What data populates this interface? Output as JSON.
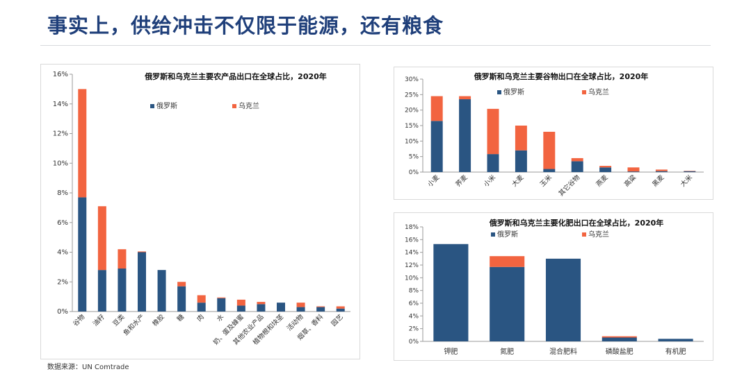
{
  "header": {
    "title": "事实上，供给冲击不仅限于能源，还有粮食"
  },
  "footer": {
    "source": "数据来源：UN Comtrade"
  },
  "colors": {
    "russia": "#2a5582",
    "ukraine": "#f26440",
    "title": "#1f3f7a"
  },
  "chart_data": [
    {
      "type": "bar",
      "stacked": true,
      "title": "俄罗斯和乌克兰主要农产品出口在全球占比，2020年",
      "categories": [
        "谷物",
        "油籽",
        "豆类",
        "鱼和水产",
        "橡胶",
        "糖",
        "肉",
        "水",
        "奶、蛋及蜂蜜",
        "其他农业产品",
        "植物根和块茎",
        "活动物",
        "烟草、香料",
        "园艺"
      ],
      "series": [
        {
          "name": "俄罗斯",
          "values": [
            7.7,
            2.8,
            2.9,
            4.0,
            2.8,
            1.7,
            0.6,
            0.9,
            0.4,
            0.5,
            0.6,
            0.3,
            0.3,
            0.2
          ]
        },
        {
          "name": "乌克兰",
          "values": [
            7.3,
            4.3,
            1.3,
            0.05,
            0.0,
            0.3,
            0.5,
            0.05,
            0.4,
            0.15,
            0.0,
            0.3,
            0.05,
            0.15
          ]
        }
      ],
      "ylim": [
        0,
        16
      ],
      "yticks": [
        "0%",
        "2%",
        "4%",
        "6%",
        "8%",
        "10%",
        "12%",
        "14%",
        "16%"
      ],
      "legend": "top-left"
    },
    {
      "type": "bar",
      "stacked": true,
      "title": "俄罗斯和乌克兰主要谷物出口在全球占比，2020年",
      "categories": [
        "小麦",
        "荞麦",
        "小米",
        "大麦",
        "玉米",
        "其它谷物",
        "燕麦",
        "高粱",
        "黑麦",
        "大米"
      ],
      "series": [
        {
          "name": "俄罗斯",
          "values": [
            16.5,
            23.5,
            5.8,
            7.0,
            1.0,
            3.5,
            1.5,
            0.2,
            0.3,
            0.3
          ]
        },
        {
          "name": "乌克兰",
          "values": [
            8.0,
            1.0,
            14.6,
            8.0,
            12.0,
            1.0,
            0.5,
            1.3,
            0.5,
            0.1
          ]
        }
      ],
      "ylim": [
        0,
        30
      ],
      "yticks": [
        "0%",
        "5%",
        "10%",
        "15%",
        "20%",
        "25%",
        "30%"
      ],
      "legend": "top"
    },
    {
      "type": "bar",
      "stacked": true,
      "title": "俄罗斯和乌克兰主要化肥出口在全球占比，2020年",
      "categories": [
        "钾肥",
        "氮肥",
        "混合肥料",
        "磷酸盐肥",
        "有机肥"
      ],
      "series": [
        {
          "name": "俄罗斯",
          "values": [
            15.3,
            11.7,
            13.0,
            0.6,
            0.4
          ]
        },
        {
          "name": "乌克兰",
          "values": [
            0.0,
            1.7,
            0.0,
            0.2,
            0.0
          ]
        }
      ],
      "ylim": [
        0,
        18
      ],
      "yticks": [
        "0%",
        "2%",
        "4%",
        "6%",
        "8%",
        "10%",
        "12%",
        "14%",
        "16%",
        "18%"
      ],
      "legend": "top"
    }
  ]
}
